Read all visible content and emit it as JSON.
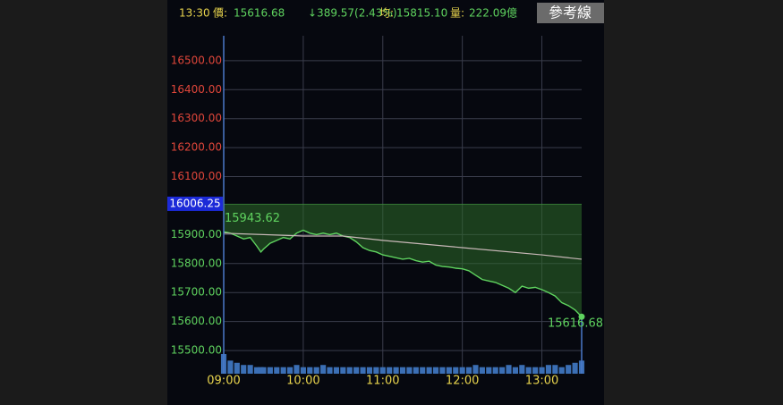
{
  "chart_data": {
    "type": "line",
    "header": {
      "time": "13:30",
      "price_label": "價:",
      "price": "15616.68",
      "change": "↓389.57(2.43%)",
      "avg_label": "均:",
      "avg": "15815.10",
      "volume_label": "量:",
      "volume": "222.09億",
      "button": "參考線"
    },
    "x": [
      0,
      5,
      10,
      15,
      20,
      25,
      28,
      30,
      35,
      40,
      45,
      50,
      55,
      60,
      65,
      70,
      75,
      80,
      85,
      90,
      95,
      100,
      105,
      110,
      115,
      120,
      125,
      130,
      135,
      140,
      145,
      150,
      155,
      160,
      165,
      170,
      175,
      180,
      185,
      190,
      195,
      200,
      205,
      210,
      215,
      220,
      225,
      230,
      235,
      240,
      245,
      250,
      255,
      260,
      265,
      270
    ],
    "series": [
      {
        "name": "index",
        "color": "#5fd35f",
        "values": [
          15910,
          15905,
          15895,
          15885,
          15890,
          15860,
          15840,
          15850,
          15870,
          15880,
          15890,
          15885,
          15905,
          15915,
          15905,
          15900,
          15905,
          15900,
          15905,
          15895,
          15890,
          15875,
          15855,
          15845,
          15840,
          15830,
          15825,
          15820,
          15815,
          15818,
          15810,
          15805,
          15808,
          15795,
          15790,
          15788,
          15784,
          15782,
          15775,
          15760,
          15745,
          15740,
          15735,
          15725,
          15715,
          15700,
          15722,
          15715,
          15718,
          15710,
          15700,
          15688,
          15665,
          15655,
          15640,
          15616.68
        ]
      },
      {
        "name": "average",
        "color": "#c9b8b8",
        "x": [
          0,
          60,
          90,
          120,
          180,
          240,
          270
        ],
        "values": [
          15905,
          15895,
          15895,
          15880,
          15855,
          15830,
          15815
        ]
      }
    ],
    "volume": [
      9,
      6,
      5,
      4,
      4,
      3,
      3,
      3,
      3,
      3,
      3,
      3,
      4,
      3,
      3,
      3,
      4,
      3,
      3,
      3,
      3,
      3,
      3,
      3,
      3,
      3,
      3,
      3,
      3,
      3,
      3,
      3,
      3,
      3,
      3,
      3,
      3,
      3,
      3,
      4,
      3,
      3,
      3,
      3,
      4,
      3,
      4,
      3,
      3,
      3,
      4,
      4,
      3,
      4,
      5,
      6
    ],
    "volume_color": "#3b6fb5",
    "reference": {
      "value": 16006.25,
      "label": "16006.25"
    },
    "high": {
      "value": 15943.62,
      "label": "15943.62"
    },
    "last": {
      "value": 15616.68,
      "label": "15616.68"
    },
    "xlim": [
      0,
      270
    ],
    "xticks": [
      {
        "value": 0,
        "label": "09:00"
      },
      {
        "value": 60,
        "label": "10:00"
      },
      {
        "value": 120,
        "label": "11:00"
      },
      {
        "value": 180,
        "label": "12:00"
      },
      {
        "value": 240,
        "label": "13:00"
      }
    ],
    "ylim": [
      15420,
      16586
    ],
    "yticks": [
      {
        "value": 15500,
        "label": "15500.00"
      },
      {
        "value": 15600,
        "label": "15600.00"
      },
      {
        "value": 15700,
        "label": "15700.00"
      },
      {
        "value": 15800,
        "label": "15800.00"
      },
      {
        "value": 15900,
        "label": "15900.00"
      },
      {
        "value": 16100,
        "label": "16100.00"
      },
      {
        "value": 16200,
        "label": "16200.00"
      },
      {
        "value": 16300,
        "label": "16300.00"
      },
      {
        "value": 16400,
        "label": "16400.00"
      },
      {
        "value": 16500,
        "label": "16500.00"
      }
    ],
    "grid": true
  }
}
